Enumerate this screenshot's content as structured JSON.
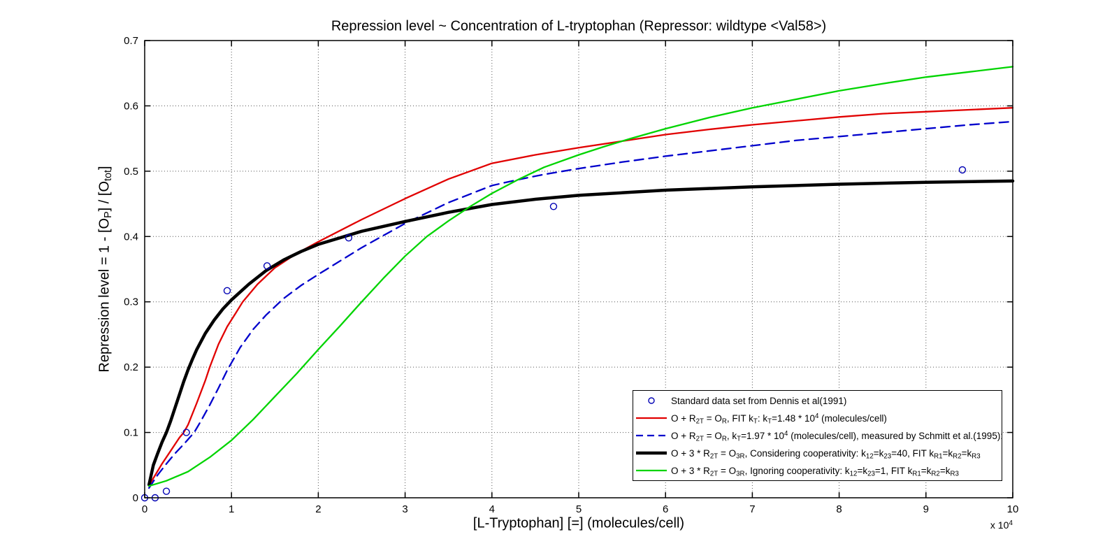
{
  "title": "Repression level ~ Concentration of L-tryptophan (Repressor: wildtype <Val58>)",
  "xlabel": "[L-Tryptophan] [=] (molecules/cell)",
  "ylabel_rich": [
    {
      "t": "Repression level =  1 - [O"
    },
    {
      "t": "P",
      "v": "sub"
    },
    {
      "t": "] / [O"
    },
    {
      "t": "tot",
      "v": "sub"
    },
    {
      "t": "]"
    }
  ],
  "axis_multiplier_rich": [
    {
      "t": "x 10"
    },
    {
      "t": "4",
      "v": "sup"
    }
  ],
  "colors": {
    "background": "#ffffff",
    "axis": "#000000",
    "grid": "#555555",
    "red_fit": "#e10000",
    "blue_dashed": "#0000cc",
    "black_coop": "#000000",
    "green_nocoop": "#00d400",
    "scatter": "#0000b4"
  },
  "legend": {
    "entries": [
      {
        "marker": "circle",
        "color": "#0000b4",
        "label_rich": [
          {
            "t": "Standard data set from Dennis et al(1991)"
          }
        ]
      },
      {
        "marker": "line",
        "color": "#e10000",
        "width": 2.3,
        "label_rich": [
          {
            "t": "O + R"
          },
          {
            "t": "2T",
            "v": "sub"
          },
          {
            "t": " = O"
          },
          {
            "t": "R",
            "v": "sub"
          },
          {
            "t": ", FIT k"
          },
          {
            "t": "T",
            "v": "sub"
          },
          {
            "t": ": k"
          },
          {
            "t": "T",
            "v": "sub"
          },
          {
            "t": "=1.48 * 10"
          },
          {
            "t": "4",
            "v": "sup"
          },
          {
            "t": " (molecules/cell)"
          }
        ]
      },
      {
        "marker": "line-dashed",
        "color": "#0000cc",
        "width": 2.3,
        "label_rich": [
          {
            "t": "O + R"
          },
          {
            "t": "2T",
            "v": "sub"
          },
          {
            "t": " = O"
          },
          {
            "t": "R",
            "v": "sub"
          },
          {
            "t": ",  k"
          },
          {
            "t": "T",
            "v": "sub"
          },
          {
            "t": "=1.97 * 10"
          },
          {
            "t": "4",
            "v": "sup"
          },
          {
            "t": " (molecules/cell), measured by Schmitt et al.(1995):"
          }
        ]
      },
      {
        "marker": "line",
        "color": "#000000",
        "width": 4.5,
        "label_rich": [
          {
            "t": "O + 3 * R"
          },
          {
            "t": "2T",
            "v": "sub"
          },
          {
            "t": " = O"
          },
          {
            "t": "3R",
            "v": "sub"
          },
          {
            "t": ", Considering cooperativity: k"
          },
          {
            "t": "12",
            "v": "sub"
          },
          {
            "t": "=k"
          },
          {
            "t": "23",
            "v": "sub"
          },
          {
            "t": "=40, FIT k"
          },
          {
            "t": "R1",
            "v": "sub"
          },
          {
            "t": "=k"
          },
          {
            "t": "R2",
            "v": "sub"
          },
          {
            "t": "=k"
          },
          {
            "t": "R3",
            "v": "sub"
          }
        ]
      },
      {
        "marker": "line",
        "color": "#00d400",
        "width": 2.3,
        "label_rich": [
          {
            "t": "O + 3 * R"
          },
          {
            "t": "2T",
            "v": "sub"
          },
          {
            "t": " = O"
          },
          {
            "t": "3R",
            "v": "sub"
          },
          {
            "t": ", Ignoring cooperativity: k"
          },
          {
            "t": "12",
            "v": "sub"
          },
          {
            "t": "=k"
          },
          {
            "t": "23",
            "v": "sub"
          },
          {
            "t": "=1, FIT k"
          },
          {
            "t": "R1",
            "v": "sub"
          },
          {
            "t": "=k"
          },
          {
            "t": "R2",
            "v": "sub"
          },
          {
            "t": "=k"
          },
          {
            "t": "R3",
            "v": "sub"
          }
        ]
      }
    ]
  },
  "chart_data": {
    "type": "line",
    "title": "Repression level ~ Concentration of L-tryptophan (Repressor: wildtype <Val58>)",
    "xlabel": "[L-Tryptophan] [=] (molecules/cell)",
    "ylabel": "Repression level = 1 - [OP] / [Otot]",
    "x_unit_multiplier": "1e4",
    "xlim": [
      0,
      10
    ],
    "ylim": [
      0,
      0.7
    ],
    "grid": true,
    "legend_position": "south-east-inside",
    "x_ticks": [
      0,
      1,
      2,
      3,
      4,
      5,
      6,
      7,
      8,
      9,
      10
    ],
    "x_tick_labels": [
      "0",
      "1",
      "2",
      "3",
      "4",
      "5",
      "6",
      "7",
      "8",
      "9",
      "10"
    ],
    "y_ticks": [
      0,
      0.1,
      0.2,
      0.3,
      0.4,
      0.5,
      0.6,
      0.7
    ],
    "y_tick_labels": [
      "0",
      "0.1",
      "0.2",
      "0.3",
      "0.4",
      "0.5",
      "0.6",
      "0.7"
    ],
    "scatter": {
      "name": "Standard data set from Dennis et al(1991)",
      "color": "#0000b4",
      "points": [
        [
          0,
          0
        ],
        [
          0.12,
          0
        ],
        [
          0.25,
          0.01
        ],
        [
          0.48,
          0.1
        ],
        [
          0.95,
          0.317
        ],
        [
          1.41,
          0.355
        ],
        [
          2.35,
          0.398
        ],
        [
          4.71,
          0.446
        ],
        [
          9.42,
          0.502
        ]
      ]
    },
    "series": [
      {
        "name": "O + R2T = OR, FIT kT: kT=1.48 * 10^4 (molecules/cell)",
        "color": "#e10000",
        "width": 2.3,
        "dash": null,
        "points": [
          [
            0.05,
            0.018
          ],
          [
            0.1,
            0.03
          ],
          [
            0.2,
            0.052
          ],
          [
            0.3,
            0.072
          ],
          [
            0.4,
            0.092
          ],
          [
            0.45,
            0.1
          ],
          [
            0.5,
            0.112
          ],
          [
            0.6,
            0.145
          ],
          [
            0.7,
            0.18
          ],
          [
            0.75,
            0.2
          ],
          [
            0.85,
            0.235
          ],
          [
            0.95,
            0.262
          ],
          [
            1.05,
            0.283
          ],
          [
            1.13,
            0.3
          ],
          [
            1.3,
            0.327
          ],
          [
            1.5,
            0.352
          ],
          [
            1.75,
            0.374
          ],
          [
            2.0,
            0.392
          ],
          [
            2.5,
            0.426
          ],
          [
            3.0,
            0.458
          ],
          [
            3.5,
            0.488
          ],
          [
            4.0,
            0.512
          ],
          [
            4.5,
            0.525
          ],
          [
            5.0,
            0.536
          ],
          [
            5.5,
            0.546
          ],
          [
            6.0,
            0.556
          ],
          [
            6.5,
            0.564
          ],
          [
            7.0,
            0.571
          ],
          [
            7.5,
            0.577
          ],
          [
            8.0,
            0.583
          ],
          [
            8.5,
            0.588
          ],
          [
            9.0,
            0.591
          ],
          [
            9.5,
            0.594
          ],
          [
            10.0,
            0.597
          ]
        ]
      },
      {
        "name": "O + R2T = OR, kT=1.97 * 10^4 (molecules/cell), measured by Schmitt et al.(1995)",
        "color": "#0000cc",
        "width": 2.3,
        "dash": "13 8",
        "points": [
          [
            0.05,
            0.015
          ],
          [
            0.15,
            0.035
          ],
          [
            0.25,
            0.052
          ],
          [
            0.35,
            0.068
          ],
          [
            0.45,
            0.082
          ],
          [
            0.57,
            0.1
          ],
          [
            0.65,
            0.118
          ],
          [
            0.75,
            0.142
          ],
          [
            0.85,
            0.168
          ],
          [
            0.95,
            0.195
          ],
          [
            1.1,
            0.23
          ],
          [
            1.25,
            0.258
          ],
          [
            1.4,
            0.28
          ],
          [
            1.6,
            0.305
          ],
          [
            1.8,
            0.325
          ],
          [
            2.0,
            0.342
          ],
          [
            2.5,
            0.383
          ],
          [
            3.0,
            0.42
          ],
          [
            3.5,
            0.452
          ],
          [
            4.0,
            0.478
          ],
          [
            4.3,
            0.487
          ],
          [
            4.6,
            0.495
          ],
          [
            5.0,
            0.504
          ],
          [
            5.5,
            0.514
          ],
          [
            6.0,
            0.523
          ],
          [
            6.5,
            0.531
          ],
          [
            7.0,
            0.539
          ],
          [
            7.5,
            0.547
          ],
          [
            8.0,
            0.553
          ],
          [
            8.5,
            0.559
          ],
          [
            9.0,
            0.565
          ],
          [
            9.5,
            0.571
          ],
          [
            10.0,
            0.576
          ]
        ]
      },
      {
        "name": "O + 3 * R2T = O3R, Considering cooperativity: k12=k23=40, FIT kR1=kR2=kR3",
        "color": "#000000",
        "width": 4.5,
        "dash": null,
        "points": [
          [
            0.05,
            0.02
          ],
          [
            0.1,
            0.05
          ],
          [
            0.15,
            0.068
          ],
          [
            0.2,
            0.085
          ],
          [
            0.25,
            0.1
          ],
          [
            0.3,
            0.118
          ],
          [
            0.35,
            0.138
          ],
          [
            0.4,
            0.158
          ],
          [
            0.45,
            0.178
          ],
          [
            0.5,
            0.196
          ],
          [
            0.55,
            0.212
          ],
          [
            0.6,
            0.227
          ],
          [
            0.7,
            0.252
          ],
          [
            0.8,
            0.272
          ],
          [
            0.9,
            0.289
          ],
          [
            1.0,
            0.303
          ],
          [
            1.2,
            0.327
          ],
          [
            1.4,
            0.348
          ],
          [
            1.6,
            0.364
          ],
          [
            1.8,
            0.377
          ],
          [
            2.0,
            0.388
          ],
          [
            2.5,
            0.408
          ],
          [
            3.0,
            0.423
          ],
          [
            3.5,
            0.437
          ],
          [
            4.0,
            0.449
          ],
          [
            4.5,
            0.457
          ],
          [
            5.0,
            0.463
          ],
          [
            6.0,
            0.471
          ],
          [
            7.0,
            0.476
          ],
          [
            8.0,
            0.48
          ],
          [
            9.0,
            0.483
          ],
          [
            10.0,
            0.485
          ]
        ]
      },
      {
        "name": "O + 3 * R2T = O3R, Ignoring cooperativity: k12=k23=1, FIT kR1=kR2=kR3",
        "color": "#00d400",
        "width": 2.3,
        "dash": null,
        "points": [
          [
            0.05,
            0.018
          ],
          [
            0.25,
            0.026
          ],
          [
            0.5,
            0.04
          ],
          [
            0.75,
            0.062
          ],
          [
            1.0,
            0.088
          ],
          [
            1.25,
            0.12
          ],
          [
            1.5,
            0.155
          ],
          [
            1.75,
            0.19
          ],
          [
            2.0,
            0.227
          ],
          [
            2.25,
            0.263
          ],
          [
            2.5,
            0.3
          ],
          [
            2.75,
            0.336
          ],
          [
            3.0,
            0.37
          ],
          [
            3.25,
            0.4
          ],
          [
            3.5,
            0.424
          ],
          [
            3.75,
            0.446
          ],
          [
            4.0,
            0.466
          ],
          [
            4.3,
            0.487
          ],
          [
            4.6,
            0.506
          ],
          [
            5.0,
            0.525
          ],
          [
            5.3,
            0.538
          ],
          [
            5.6,
            0.55
          ],
          [
            6.0,
            0.565
          ],
          [
            6.5,
            0.582
          ],
          [
            7.0,
            0.597
          ],
          [
            7.5,
            0.61
          ],
          [
            8.0,
            0.623
          ],
          [
            8.5,
            0.634
          ],
          [
            9.0,
            0.644
          ],
          [
            9.5,
            0.652
          ],
          [
            10.0,
            0.66
          ]
        ]
      }
    ]
  }
}
